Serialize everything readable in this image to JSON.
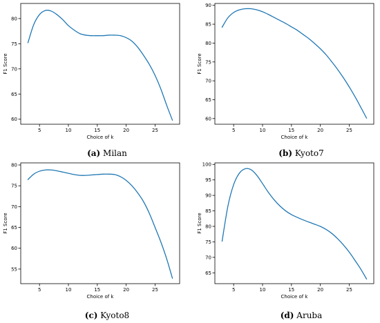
{
  "line_color": "#1f77b4",
  "chart_data": [
    {
      "type": "line",
      "caption_letter": "(a)",
      "caption_name": "Milan",
      "xlabel": "Choice of k",
      "ylabel": "F1 Score",
      "xlim": [
        1.75,
        29.25
      ],
      "ylim": [
        59,
        83
      ],
      "xticks": [
        5,
        10,
        15,
        20,
        25
      ],
      "yticks": [
        60,
        65,
        70,
        75,
        80
      ],
      "series": [
        {
          "x": [
            3,
            4,
            5,
            6,
            7,
            8,
            9,
            10,
            11,
            12,
            13,
            14,
            15,
            16,
            17,
            18,
            19,
            20,
            21,
            22,
            23,
            24,
            25,
            26,
            27,
            28
          ],
          "y": [
            75.2,
            78.8,
            80.8,
            81.6,
            81.5,
            80.8,
            79.8,
            78.6,
            77.7,
            77.0,
            76.7,
            76.6,
            76.6,
            76.6,
            76.7,
            76.7,
            76.6,
            76.2,
            75.5,
            74.3,
            72.7,
            70.9,
            68.7,
            66.0,
            62.8,
            59.8
          ]
        }
      ]
    },
    {
      "type": "line",
      "caption_letter": "(b)",
      "caption_name": "Kyoto7",
      "xlabel": "Choice of k",
      "ylabel": "F1 Score",
      "xlim": [
        1.75,
        29.25
      ],
      "ylim": [
        58.5,
        90.5
      ],
      "xticks": [
        5,
        10,
        15,
        20,
        25
      ],
      "yticks": [
        60,
        65,
        70,
        75,
        80,
        85,
        90
      ],
      "series": [
        {
          "x": [
            3,
            4,
            5,
            6,
            7,
            8,
            9,
            10,
            11,
            12,
            13,
            14,
            15,
            16,
            17,
            18,
            19,
            20,
            21,
            22,
            23,
            24,
            25,
            26,
            27,
            28
          ],
          "y": [
            84.2,
            86.7,
            88.1,
            88.8,
            89.1,
            89.1,
            88.8,
            88.3,
            87.6,
            86.8,
            86.0,
            85.2,
            84.3,
            83.4,
            82.3,
            81.2,
            79.9,
            78.5,
            76.9,
            75.0,
            73.0,
            70.8,
            68.4,
            65.8,
            63.0,
            60.1
          ]
        }
      ]
    },
    {
      "type": "line",
      "caption_letter": "(c)",
      "caption_name": "Kyoto8",
      "xlabel": "Choice of k",
      "ylabel": "F1 Score",
      "xlim": [
        1.75,
        29.25
      ],
      "ylim": [
        51.5,
        80.5
      ],
      "xticks": [
        5,
        10,
        15,
        20,
        25
      ],
      "yticks": [
        55,
        60,
        65,
        70,
        75,
        80
      ],
      "series": [
        {
          "x": [
            3,
            4,
            5,
            6,
            7,
            8,
            9,
            10,
            11,
            12,
            13,
            14,
            15,
            16,
            17,
            18,
            19,
            20,
            21,
            22,
            23,
            24,
            25,
            26,
            27,
            28
          ],
          "y": [
            76.5,
            77.8,
            78.5,
            78.8,
            78.8,
            78.6,
            78.3,
            78.0,
            77.7,
            77.5,
            77.5,
            77.6,
            77.7,
            77.8,
            77.8,
            77.7,
            77.2,
            76.3,
            75.0,
            73.3,
            71.2,
            68.4,
            65.0,
            61.5,
            57.5,
            52.8
          ]
        }
      ]
    },
    {
      "type": "line",
      "caption_letter": "(d)",
      "caption_name": "Aruba",
      "xlabel": "Choice of k",
      "ylabel": "F1 Score",
      "xlim": [
        1.75,
        29.25
      ],
      "ylim": [
        61.5,
        100.5
      ],
      "xticks": [
        5,
        10,
        15,
        20,
        25
      ],
      "yticks": [
        65,
        70,
        75,
        80,
        85,
        90,
        95,
        100
      ],
      "series": [
        {
          "x": [
            3,
            4,
            5,
            6,
            7,
            8,
            9,
            10,
            11,
            12,
            13,
            14,
            15,
            16,
            17,
            18,
            19,
            20,
            21,
            22,
            23,
            24,
            25,
            26,
            27,
            28
          ],
          "y": [
            75.2,
            86.5,
            93.5,
            97.2,
            98.6,
            98.3,
            96.5,
            93.8,
            91.0,
            88.6,
            86.6,
            85.0,
            83.8,
            82.9,
            82.1,
            81.4,
            80.7,
            80.0,
            79.0,
            77.7,
            76.0,
            74.0,
            71.7,
            69.0,
            66.2,
            63.0
          ]
        }
      ]
    }
  ]
}
